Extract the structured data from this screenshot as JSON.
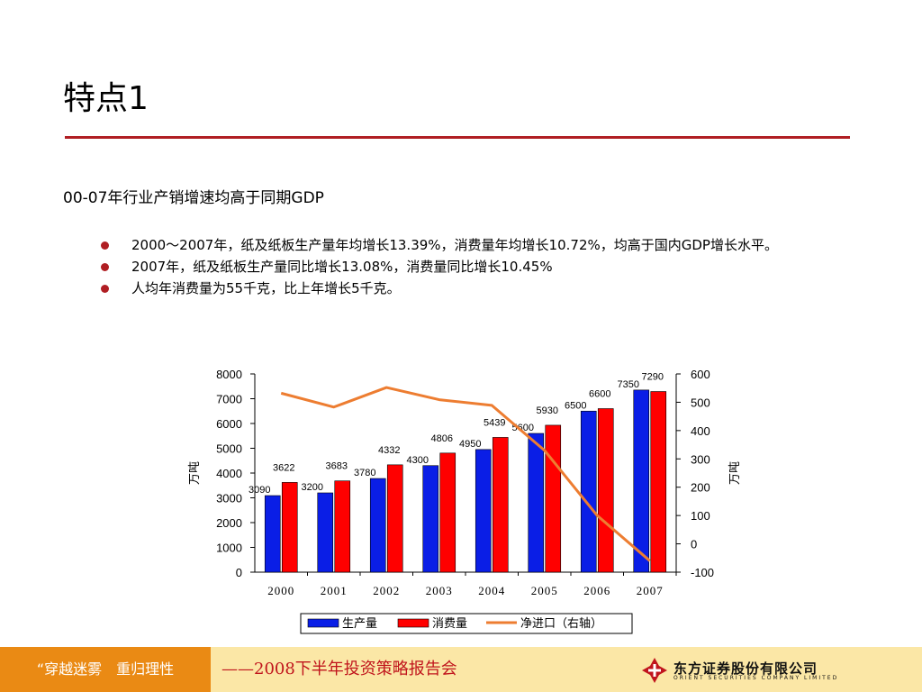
{
  "page": {
    "title": "特点1",
    "subtitle": "00-07年行业产销增速均高于同期GDP",
    "bullets": [
      "2000～2007年，纸及纸板生产量年均增长13.39%，消费量年均增长10.72%，均高于国内GDP增长水平。",
      "2007年，纸及纸板生产量同比增长13.08%，消费量同比增长10.45%",
      "人均年消费量为55千克，比上年增长5千克。"
    ]
  },
  "chart_data": {
    "type": "bar",
    "categories": [
      "2000",
      "2001",
      "2002",
      "2003",
      "2004",
      "2005",
      "2006",
      "2007"
    ],
    "series": [
      {
        "name": "生产量",
        "type": "bar",
        "axis": "left",
        "color": "#0a1ee6",
        "values": [
          3090,
          3200,
          3780,
          4300,
          4950,
          5600,
          6500,
          7350
        ]
      },
      {
        "name": "消费量",
        "type": "bar",
        "axis": "left",
        "color": "#ff0000",
        "values": [
          3622,
          3683,
          4332,
          4806,
          5439,
          5930,
          6600,
          7290
        ]
      },
      {
        "name": "净进口（右轴）",
        "type": "line",
        "axis": "right",
        "color": "#ed7d31",
        "values": [
          532,
          483,
          552,
          509,
          489,
          330,
          100,
          -60
        ]
      }
    ],
    "ylabel": "万吨",
    "y2label": "万吨",
    "ylim": [
      0,
      8000
    ],
    "y2lim": [
      -100,
      600
    ],
    "yticks": [
      "8000",
      "7000",
      "6000",
      "5000",
      "4000",
      "3000",
      "2000",
      "1000",
      "0"
    ],
    "y2ticks": [
      "600",
      "500",
      "400",
      "300",
      "200",
      "100",
      "0",
      "-100"
    ],
    "grid": false,
    "legend": "bottom"
  },
  "footer": {
    "slogan": "“穿越迷雾　重归理性",
    "report": "——2008下半年投资策略报告会",
    "company": "东方证券股份有限公司",
    "company_en": "ORIENT SECURITIES COMPANY LIMITED"
  }
}
